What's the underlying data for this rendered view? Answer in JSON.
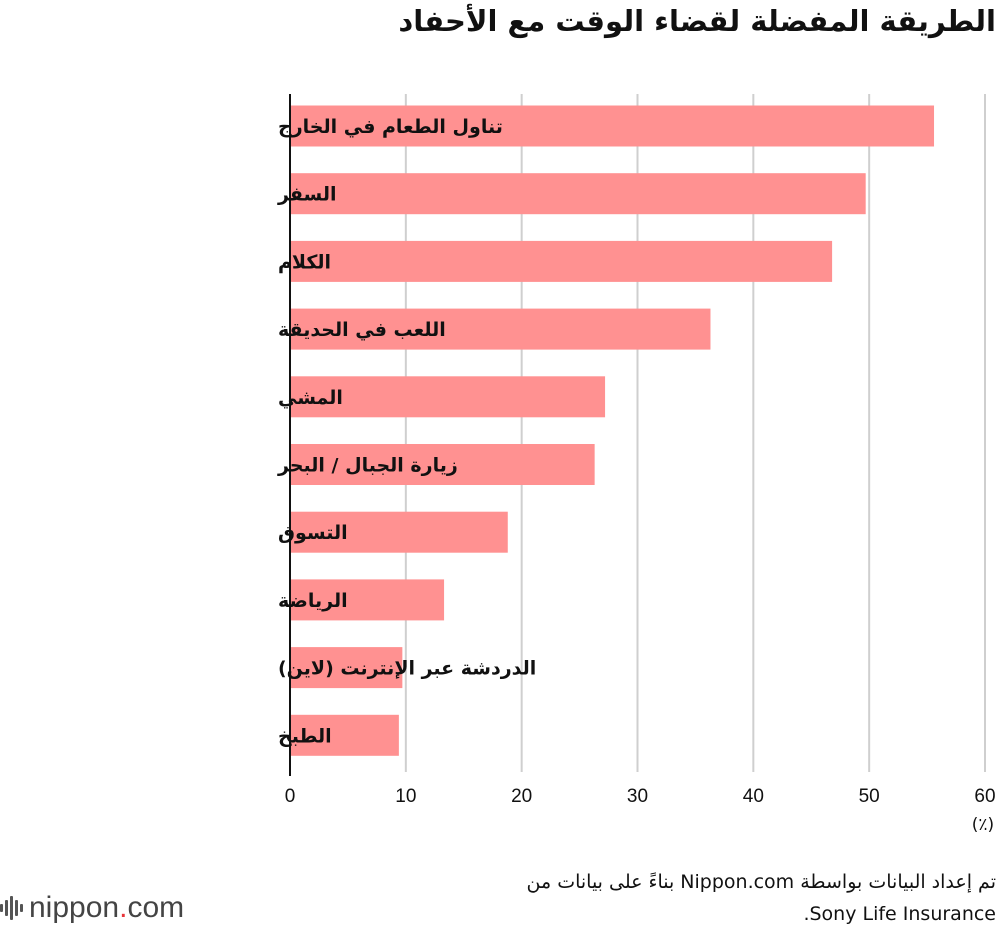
{
  "title": "الطريقة المفضلة لقضاء الوقت مع الأحفاد",
  "colors": {
    "bar": "#ff9191",
    "grid": "#cfcfcf",
    "axis": "#111111",
    "logo_dot": "#e8343a"
  },
  "chart_data": {
    "type": "bar",
    "orientation": "horizontal",
    "categories": [
      "تناول الطعام في الخارج",
      "السفر",
      "الكلام",
      "اللعب في الحديقة",
      "المشي",
      "زيارة الجبال / البحر",
      "التسوق",
      "الرياضة",
      "الدردشة عبر الإنترنت (لاين)",
      "الطبخ"
    ],
    "values": [
      55.6,
      49.7,
      46.8,
      36.3,
      27.2,
      26.3,
      18.8,
      13.3,
      9.7,
      9.4
    ],
    "xlim": [
      0,
      60
    ],
    "xticks": [
      0,
      10,
      20,
      30,
      40,
      50,
      60
    ],
    "unit": "(٪)",
    "grid": true
  },
  "source": {
    "line1": "تم إعداد البيانات بواسطة Nippon.com بناءً على بيانات من",
    "line2": "Sony Life Insurance."
  },
  "logo": {
    "name": "nippon",
    "dot": ".",
    "suffix": "com"
  }
}
